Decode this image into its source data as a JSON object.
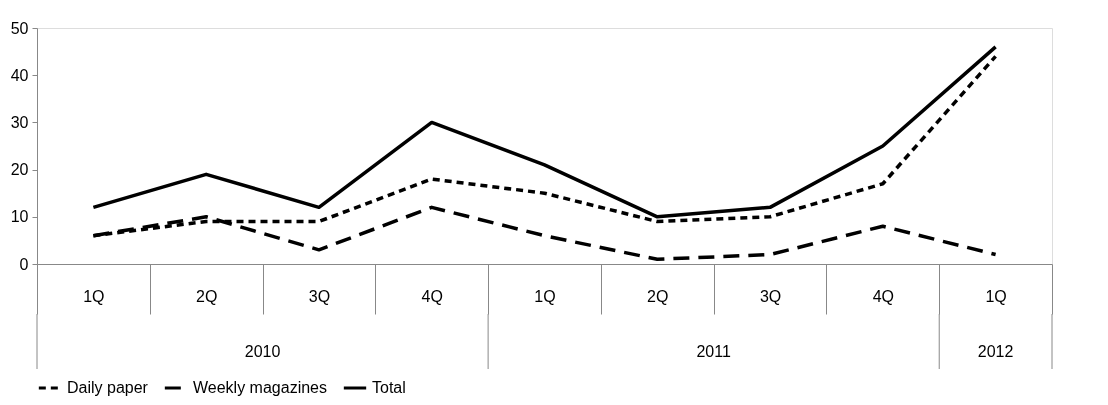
{
  "chart_data": {
    "type": "line",
    "categories": [
      "1Q",
      "2Q",
      "3Q",
      "4Q",
      "1Q",
      "2Q",
      "3Q",
      "4Q",
      "1Q"
    ],
    "annotations": [
      "2010",
      "2011",
      "2012"
    ],
    "series": [
      {
        "name": "Daily paper",
        "color": "#000000",
        "line_style": "dotted",
        "values": [
          6,
          9,
          9,
          18,
          15,
          9,
          10,
          17,
          44
        ]
      },
      {
        "name": "Weekly magazines",
        "color": "#000000",
        "line_style": "dashed",
        "values": [
          6,
          10,
          3,
          12,
          6,
          1,
          2,
          8,
          2
        ]
      },
      {
        "name": "Total",
        "color": "#000000",
        "line_style": "solid",
        "values": [
          12,
          19,
          12,
          30,
          21,
          10,
          12,
          25,
          46
        ]
      }
    ],
    "ylim": [
      0,
      50
    ],
    "yticks": [
      0,
      10,
      20,
      30,
      40,
      50
    ],
    "grid": false,
    "legend": "bottom",
    "marker": "none"
  }
}
